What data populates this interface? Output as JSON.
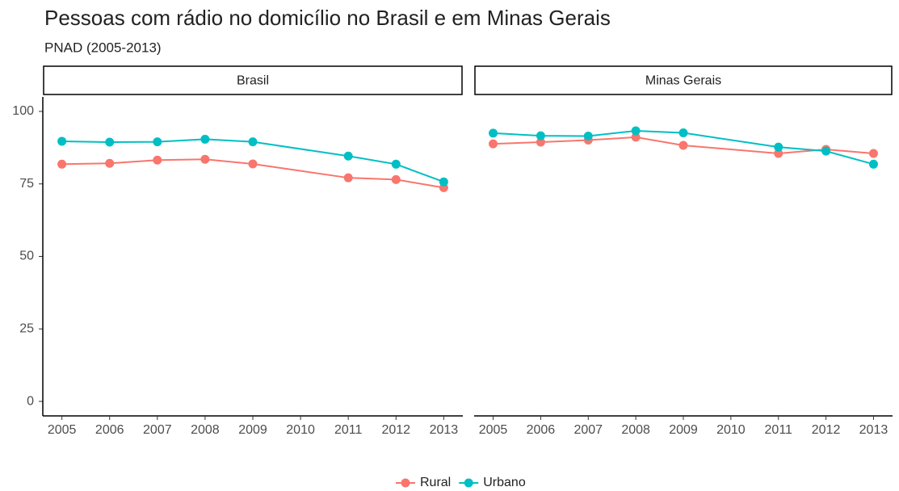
{
  "title": "Pessoas com rádio no domicílio no Brasil e em Minas Gerais",
  "subtitle": "PNAD (2005-2013)",
  "ylim": [
    -5,
    105
  ],
  "yticks": [
    0,
    25,
    50,
    75,
    100
  ],
  "chart_data": [
    {
      "type": "line",
      "title": "Brasil",
      "x": [
        2005,
        2006,
        2007,
        2008,
        2009,
        2011,
        2012,
        2013
      ],
      "xlim": [
        2004.6,
        2013.4
      ],
      "xticks": [
        2005,
        2006,
        2007,
        2008,
        2009,
        2010,
        2011,
        2012,
        2013
      ],
      "series": [
        {
          "name": "Rural",
          "color": "#F8766D",
          "values": [
            81.8,
            82.1,
            83.2,
            83.5,
            81.9,
            77.1,
            76.5,
            73.7
          ]
        },
        {
          "name": "Urbano",
          "color": "#00BFC4",
          "values": [
            89.7,
            89.4,
            89.5,
            90.4,
            89.5,
            84.6,
            81.8,
            75.7
          ]
        }
      ]
    },
    {
      "type": "line",
      "title": "Minas Gerais",
      "x": [
        2005,
        2006,
        2007,
        2008,
        2009,
        2011,
        2012,
        2013
      ],
      "xlim": [
        2004.6,
        2013.4
      ],
      "xticks": [
        2005,
        2006,
        2007,
        2008,
        2009,
        2010,
        2011,
        2012,
        2013
      ],
      "series": [
        {
          "name": "Rural",
          "color": "#F8766D",
          "values": [
            88.8,
            89.4,
            90.1,
            91.1,
            88.3,
            85.5,
            86.9,
            85.5
          ]
        },
        {
          "name": "Urbano",
          "color": "#00BFC4",
          "values": [
            92.5,
            91.6,
            91.5,
            93.3,
            92.6,
            87.7,
            86.3,
            81.8
          ]
        }
      ]
    }
  ]
}
